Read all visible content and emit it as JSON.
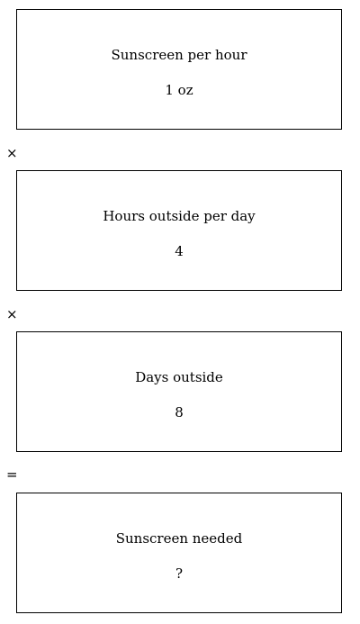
{
  "cards": [
    {
      "label": "Sunscreen per hour",
      "value": "1 oz"
    },
    {
      "label": "Hours outside per day",
      "value": "4"
    },
    {
      "label": "Days outside",
      "value": "8"
    },
    {
      "label": "Sunscreen needed",
      "value": "?"
    }
  ],
  "operators": [
    "×",
    "×",
    "="
  ]
}
